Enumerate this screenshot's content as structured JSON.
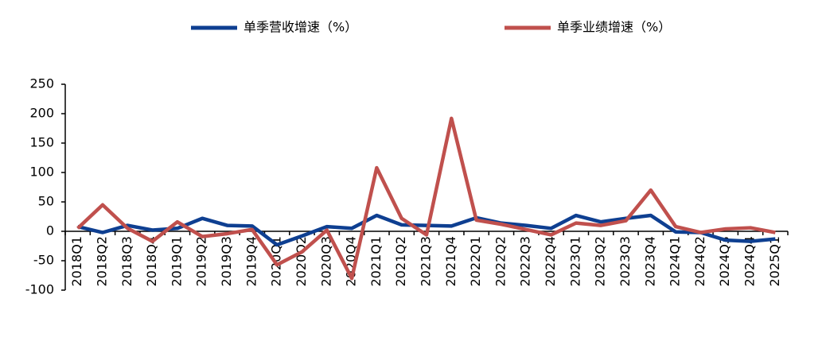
{
  "chart_data": {
    "type": "line",
    "categories": [
      "2018Q1",
      "2018Q2",
      "2018Q3",
      "2018Q4",
      "2019Q1",
      "2019Q2",
      "2019Q3",
      "2019Q4",
      "2020Q1",
      "2020Q2",
      "2020Q3",
      "2020Q4",
      "2021Q1",
      "2021Q2",
      "2021Q3",
      "2021Q4",
      "2022Q1",
      "2022Q2",
      "2022Q3",
      "2022Q4",
      "2023Q1",
      "2023Q2",
      "2023Q3",
      "2023Q4",
      "2024Q1",
      "2024Q2",
      "2024Q3",
      "2024Q4",
      "2025Q1"
    ],
    "series": [
      {
        "name": "单季营收增速（%）",
        "color": "#0e3f91",
        "values": [
          8,
          -2,
          10,
          2,
          5,
          22,
          10,
          9,
          -23,
          -8,
          8,
          5,
          27,
          11,
          10,
          9,
          23,
          14,
          10,
          5,
          27,
          16,
          22,
          27,
          -1,
          -2,
          -15,
          -17,
          -13
        ]
      },
      {
        "name": "单季业绩增速（%）",
        "color": "#c0504d",
        "values": [
          5,
          45,
          5,
          -17,
          16,
          -9,
          -4,
          3,
          -57,
          -35,
          2,
          -80,
          108,
          22,
          -6,
          192,
          19,
          12,
          3,
          -6,
          14,
          10,
          18,
          70,
          8,
          -2,
          4,
          6,
          -2
        ]
      }
    ],
    "ylim": [
      -100,
      250
    ],
    "yticks": [
      -100,
      -50,
      0,
      50,
      100,
      150,
      200,
      250
    ],
    "grid": false,
    "legend": "top"
  }
}
